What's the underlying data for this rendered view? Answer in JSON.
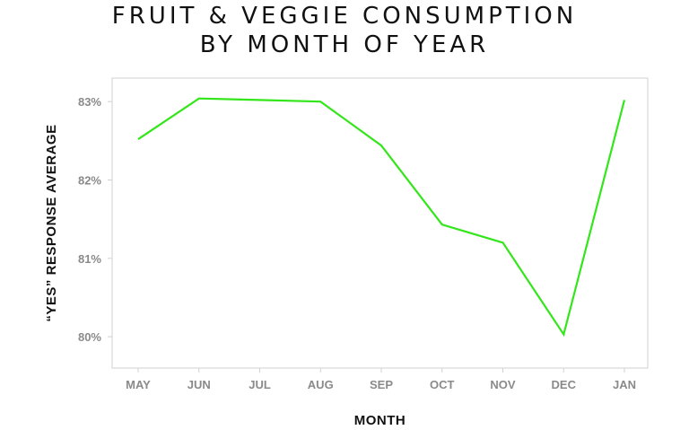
{
  "chart_data": {
    "type": "line",
    "title_lines": [
      "FRUIT & VEGGIE CONSUMPTION",
      "BY MONTH OF YEAR"
    ],
    "xlabel": "MONTH",
    "ylabel": "“YES” RESPONSE AVERAGE",
    "categories": [
      "MAY",
      "JUN",
      "JUL",
      "AUG",
      "SEP",
      "OCT",
      "NOV",
      "DEC",
      "JAN"
    ],
    "y_ticks": [
      "80%",
      "81%",
      "82%",
      "83%"
    ],
    "y_tick_values": [
      80,
      81,
      82,
      83
    ],
    "ylim": [
      79.6,
      83.3
    ],
    "grid": false,
    "series": [
      {
        "values": [
          82.52,
          83.04,
          83.02,
          83.0,
          82.44,
          81.43,
          81.2,
          80.03,
          83.02
        ],
        "color": "#33e61a"
      }
    ]
  }
}
